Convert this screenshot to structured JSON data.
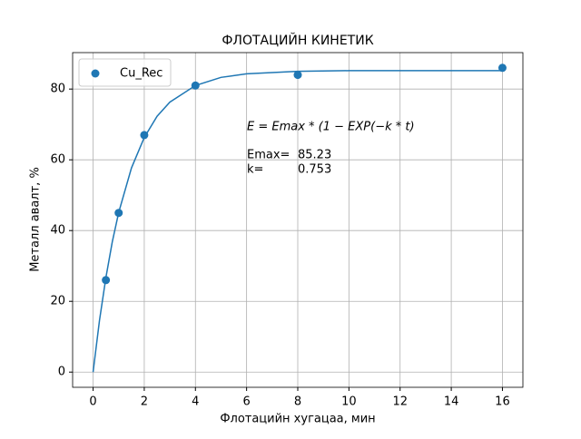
{
  "chart_data": {
    "type": "scatter",
    "title": "ФЛОТАЦИЙН КИНЕТИК",
    "x_label": "Флотацийн хугацаа, мин",
    "y_label": "Металл авалт, %",
    "xlim": [
      -0.8,
      16.8
    ],
    "ylim": [
      -4.3,
      90.3
    ],
    "xticks": [
      0,
      2,
      4,
      6,
      8,
      10,
      12,
      14,
      16
    ],
    "yticks": [
      0,
      20,
      40,
      60,
      80
    ],
    "grid": true,
    "legend": "upper-left",
    "series": [
      {
        "name": "Cu_Rec",
        "type": "scatter",
        "color": "#1f77b4",
        "x": [
          0.5,
          1,
          2,
          4,
          8,
          16
        ],
        "values": [
          26,
          45,
          67,
          81,
          84,
          86
        ]
      },
      {
        "type": "line",
        "color": "#1f77b4",
        "x": [
          0,
          0.25,
          0.5,
          0.75,
          1,
          1.5,
          2,
          2.5,
          3,
          4,
          5,
          6,
          8,
          10,
          12,
          14,
          16
        ],
        "values": [
          0,
          14.6,
          26.7,
          36.8,
          45.1,
          57.7,
          66.3,
          72.3,
          76.3,
          81.0,
          83.3,
          84.3,
          85.0,
          85.2,
          85.2,
          85.2,
          85.2
        ]
      }
    ],
    "annotation": {
      "formula": "E = Emax * (1 − EXP(−k * t)",
      "emax_label": "Emax=",
      "emax": 85.23,
      "k_label": "k=",
      "k": 0.753
    }
  }
}
